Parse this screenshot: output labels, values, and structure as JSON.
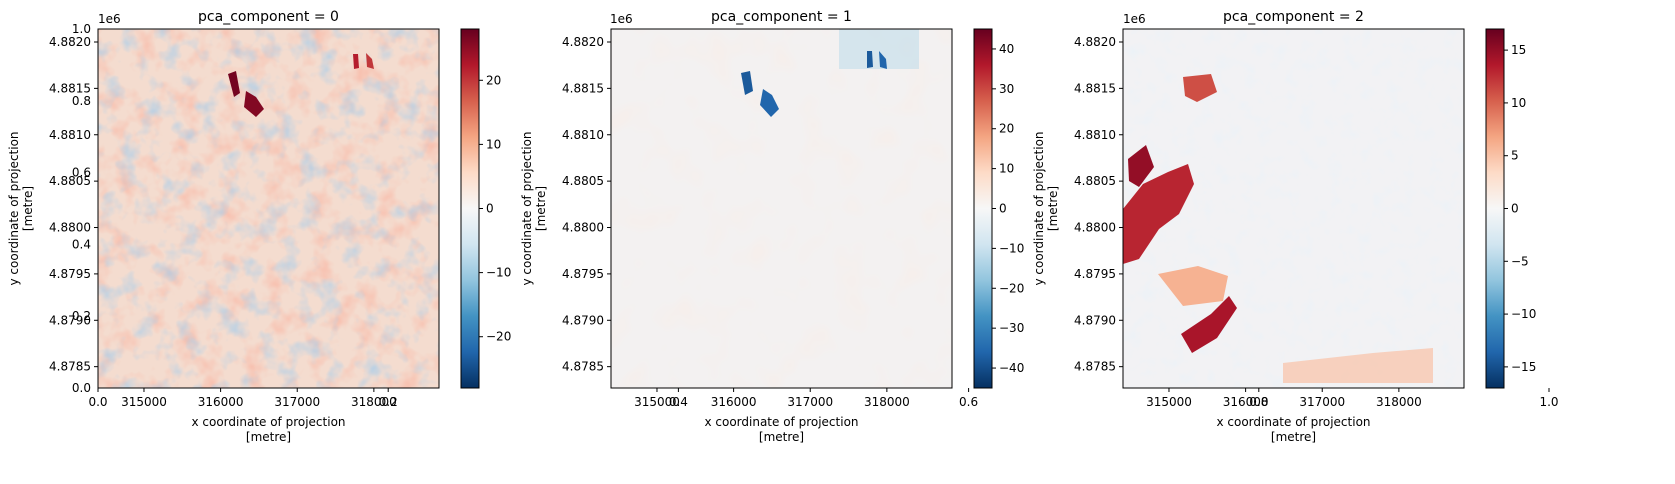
{
  "figure": {
    "exponent_top": "1e6",
    "bg_axis_ticks": [
      "0.0",
      "0.2",
      "0.4",
      "0.6",
      "0.8",
      "1.0"
    ],
    "bg_axis_x_ticks": [
      "0.0",
      "0.2",
      "0.4",
      "0.6",
      "0.8",
      "1.0"
    ]
  },
  "chart_data": [
    {
      "type": "heatmap",
      "title": "pca_component = 0",
      "xlabel": "x coordinate of projection\n[metre]",
      "ylabel": "y coordinate of projection\n[metre]",
      "x_ticks": [
        "315000",
        "316000",
        "317000",
        "318000"
      ],
      "x_tick_values": [
        315000,
        316000,
        317000,
        318000
      ],
      "xlim": [
        314400,
        318850
      ],
      "y_ticks": [
        "4.8785",
        "4.8790",
        "4.8795",
        "4.8800",
        "4.8805",
        "4.8810",
        "4.8815",
        "4.8820"
      ],
      "y_tick_values": [
        4.8785,
        4.879,
        4.8795,
        4.88,
        4.8805,
        4.881,
        4.8815,
        4.882
      ],
      "ylim": [
        4.87827,
        4.88214
      ],
      "y_offset": "1e6",
      "colormap": "RdBu_r",
      "clim": [
        -28,
        28
      ],
      "colorbar_ticks": [
        "20",
        "10",
        "0",
        "−10",
        "−20"
      ],
      "colorbar_values": [
        20,
        10,
        0,
        -10,
        -20
      ]
    },
    {
      "type": "heatmap",
      "title": "pca_component = 1",
      "xlabel": "x coordinate of projection\n[metre]",
      "ylabel": "y coordinate of projection\n[metre]",
      "x_ticks": [
        "315000",
        "316000",
        "317000",
        "318000"
      ],
      "x_tick_values": [
        315000,
        316000,
        317000,
        318000
      ],
      "xlim": [
        314400,
        318850
      ],
      "y_ticks": [
        "4.8785",
        "4.8790",
        "4.8795",
        "4.8800",
        "4.8805",
        "4.8810",
        "4.8815",
        "4.8820"
      ],
      "y_tick_values": [
        4.8785,
        4.879,
        4.8795,
        4.88,
        4.8805,
        4.881,
        4.8815,
        4.882
      ],
      "ylim": [
        4.87827,
        4.88214
      ],
      "y_offset": "1e6",
      "colormap": "RdBu_r",
      "clim": [
        -45,
        45
      ],
      "colorbar_ticks": [
        "40",
        "30",
        "20",
        "10",
        "0",
        "−10",
        "−20",
        "−30",
        "−40"
      ],
      "colorbar_values": [
        40,
        30,
        20,
        10,
        0,
        -10,
        -20,
        -30,
        -40
      ]
    },
    {
      "type": "heatmap",
      "title": "pca_component = 2",
      "xlabel": "x coordinate of projection\n[metre]",
      "ylabel": "y coordinate of projection\n[metre]",
      "x_ticks": [
        "315000",
        "316000",
        "317000",
        "318000"
      ],
      "x_tick_values": [
        315000,
        316000,
        317000,
        318000
      ],
      "xlim": [
        314400,
        318850
      ],
      "y_ticks": [
        "4.8785",
        "4.8790",
        "4.8795",
        "4.8800",
        "4.8805",
        "4.8810",
        "4.8815",
        "4.8820"
      ],
      "y_tick_values": [
        4.8785,
        4.879,
        4.8795,
        4.88,
        4.8805,
        4.881,
        4.8815,
        4.882
      ],
      "ylim": [
        4.87827,
        4.88214
      ],
      "y_offset": "1e6",
      "colormap": "RdBu_r",
      "clim": [
        -17,
        17
      ],
      "colorbar_ticks": [
        "15",
        "10",
        "5",
        "0",
        "−5",
        "−10",
        "−15"
      ],
      "colorbar_values": [
        15,
        10,
        5,
        0,
        -5,
        -10,
        -15
      ]
    }
  ]
}
